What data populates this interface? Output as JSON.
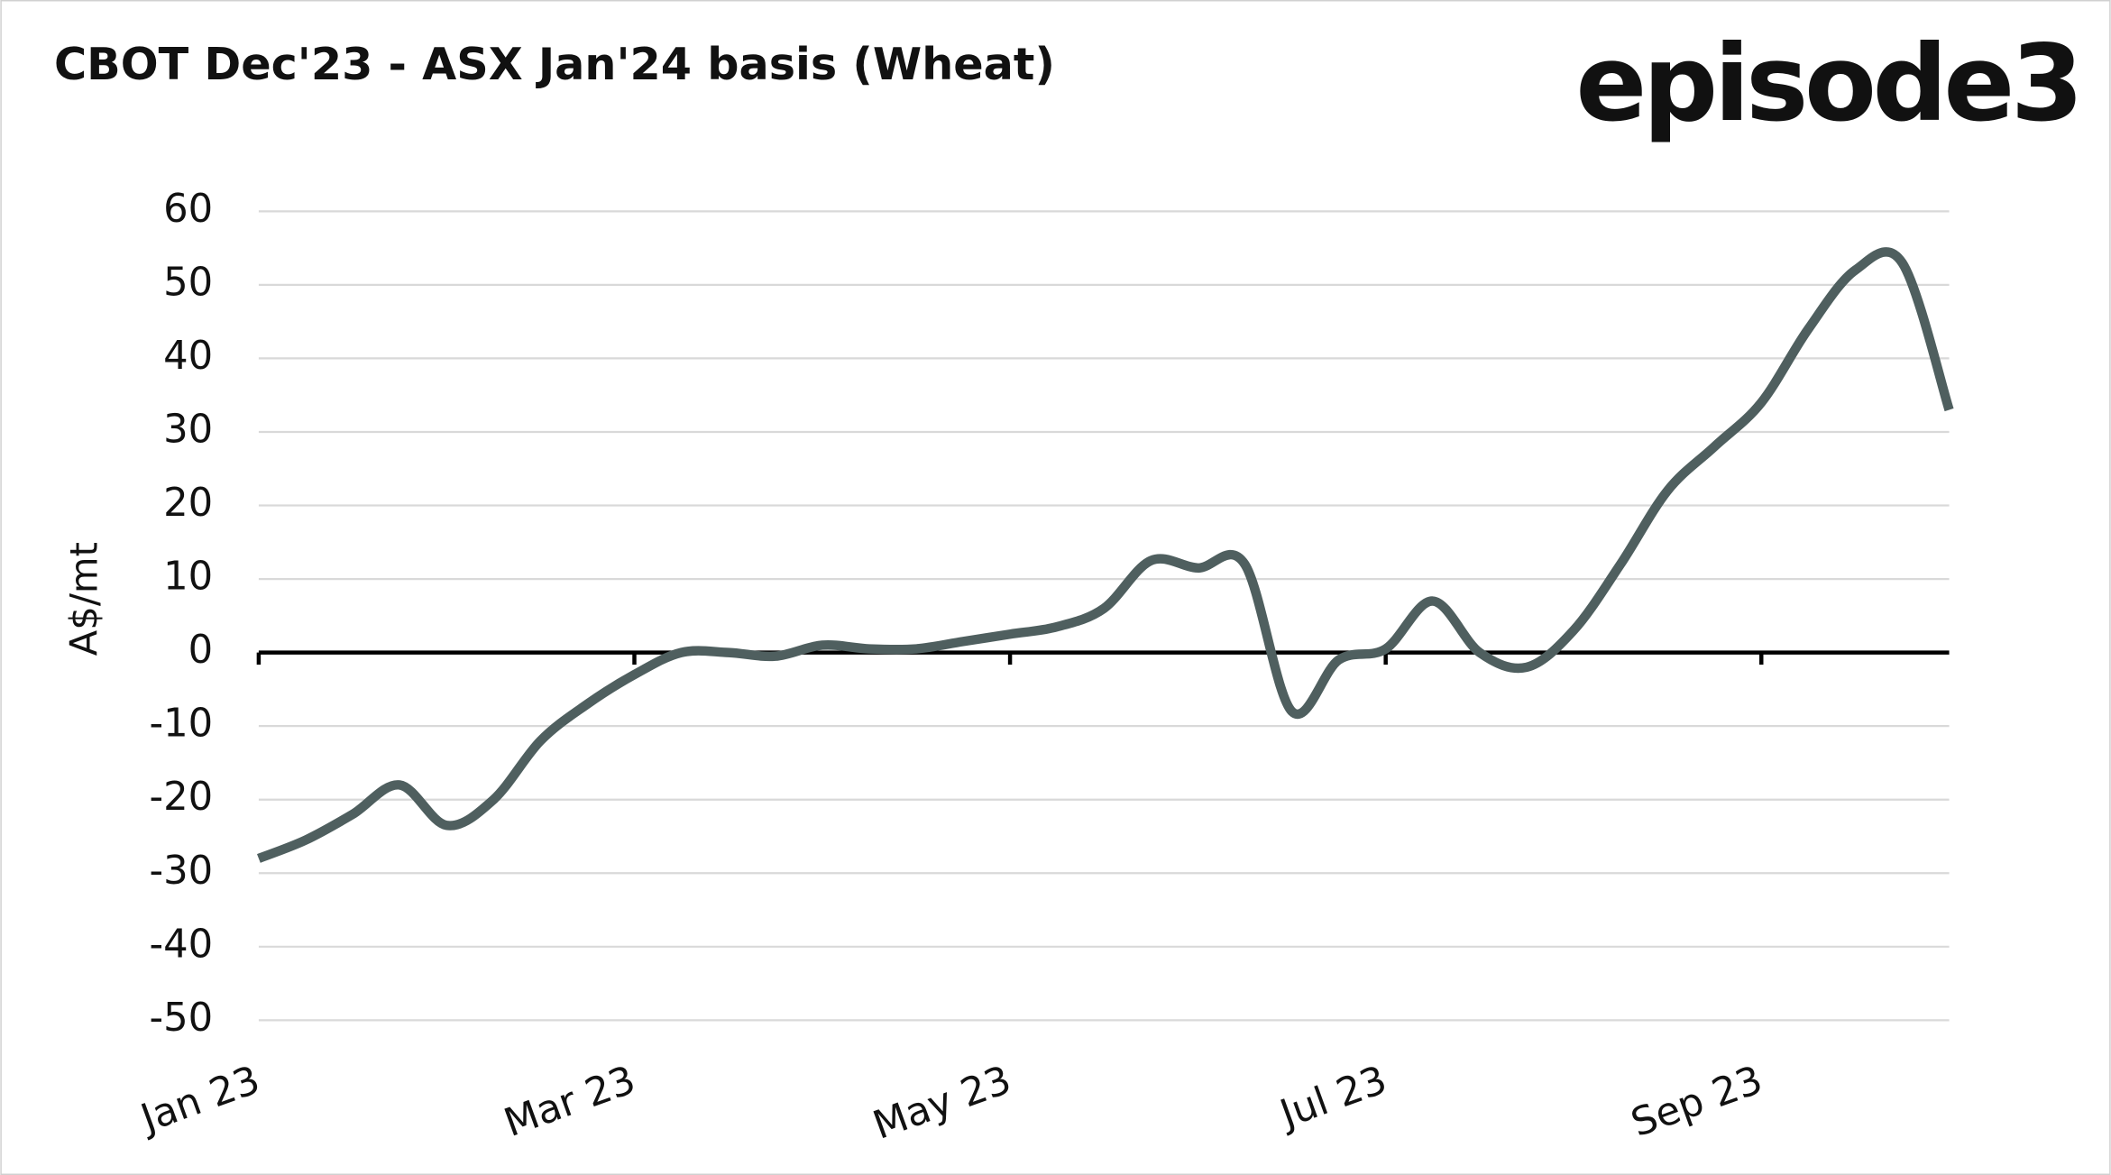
{
  "chart_data": {
    "type": "line",
    "title": "CBOT Dec'23 - ASX Jan'24 basis (Wheat)",
    "logo": "episode3",
    "y_label": "A$/mt",
    "categories": [
      "Jan 23",
      null,
      null,
      null,
      null,
      null,
      null,
      null,
      "Mar 23",
      null,
      null,
      null,
      null,
      null,
      null,
      null,
      "May 23",
      null,
      null,
      null,
      null,
      null,
      null,
      null,
      "Jul 23",
      null,
      null,
      null,
      null,
      null,
      null,
      null,
      "Sep 23",
      null,
      null,
      null,
      null
    ],
    "series": [
      {
        "name": "CBOT Dec'23 - ASX Jan'24 basis",
        "color": "#4f5f5f",
        "values": [
          -28,
          -25.5,
          -22,
          -18,
          -23.5,
          -20,
          -12,
          -7,
          -3,
          0,
          0,
          -0.5,
          1,
          0.5,
          0.5,
          1.5,
          2.5,
          3.5,
          6,
          12.5,
          11.5,
          12,
          -8,
          -1,
          0.5,
          7,
          0,
          -2,
          3,
          12,
          22,
          28,
          34,
          44,
          52,
          53,
          33
        ]
      }
    ],
    "ylim": [
      -50,
      60
    ],
    "yticks": [
      -50,
      -40,
      -30,
      -20,
      -10,
      0,
      10,
      20,
      30,
      40,
      50,
      60
    ],
    "grid": true
  }
}
